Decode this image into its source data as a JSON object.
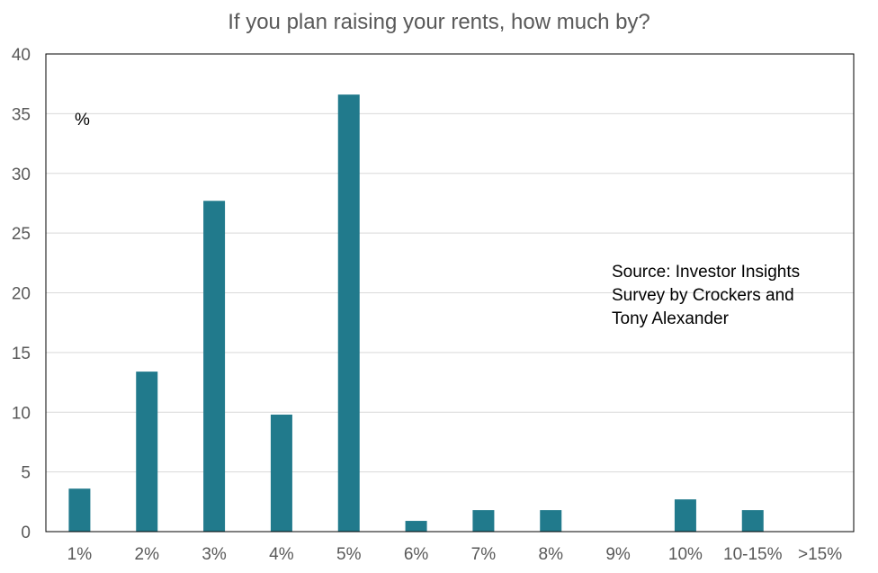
{
  "chart_data": {
    "type": "bar",
    "title": "If you plan raising your rents, how much by?",
    "unit_label": "%",
    "source_note": [
      "Source: Investor Insights",
      "Survey by Crockers and",
      "Tony Alexander"
    ],
    "categories": [
      "1%",
      "2%",
      "3%",
      "4%",
      "5%",
      "6%",
      "7%",
      "8%",
      "9%",
      "10%",
      "10-15%",
      ">15%"
    ],
    "values": [
      3.6,
      13.4,
      27.7,
      9.8,
      36.6,
      0.9,
      1.8,
      1.8,
      0,
      2.7,
      1.8,
      0
    ],
    "ylim": [
      0,
      40
    ],
    "yticks": [
      0,
      5,
      10,
      15,
      20,
      25,
      30,
      35,
      40
    ],
    "grid": true,
    "bar_color": "#217a8c"
  }
}
